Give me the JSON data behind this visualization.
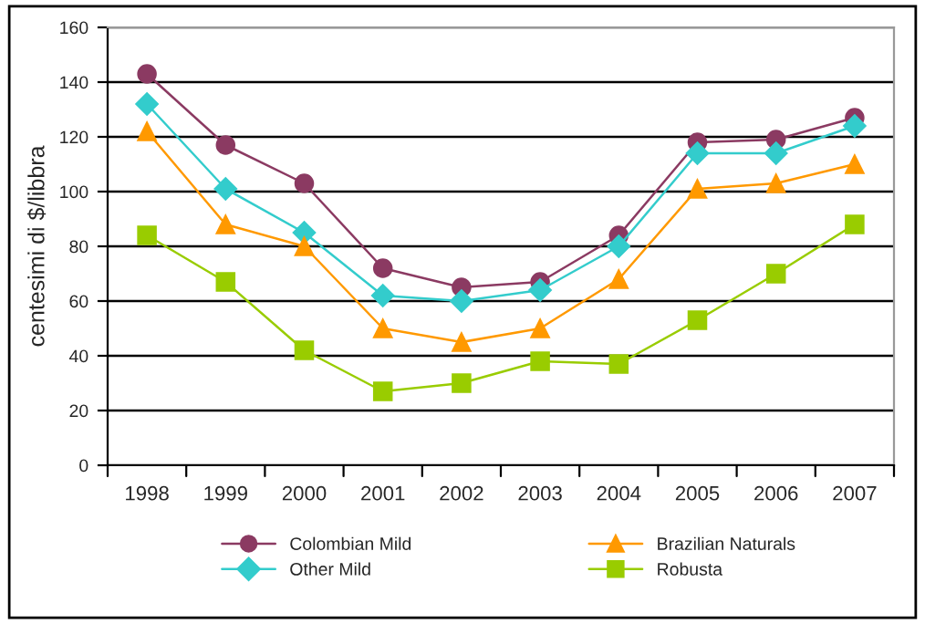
{
  "chart_data": {
    "type": "line",
    "ylabel": "centesimi di $/libbra",
    "categories": [
      "1998",
      "1999",
      "2000",
      "2001",
      "2002",
      "2003",
      "2004",
      "2005",
      "2006",
      "2007"
    ],
    "series": [
      {
        "name": "Colombian Mild",
        "color": "#8b3a62",
        "marker": "circle",
        "values": [
          143,
          117,
          103,
          72,
          65,
          67,
          84,
          118,
          119,
          127
        ]
      },
      {
        "name": "Other Mild",
        "color": "#33cccc",
        "marker": "diamond",
        "values": [
          132,
          101,
          85,
          62,
          60,
          64,
          80,
          114,
          114,
          124
        ]
      },
      {
        "name": "Brazilian Naturals",
        "color": "#ff9900",
        "marker": "triangle",
        "values": [
          122,
          88,
          80,
          50,
          45,
          50,
          68,
          101,
          103,
          110
        ]
      },
      {
        "name": "Robusta",
        "color": "#99cc00",
        "marker": "square",
        "values": [
          84,
          67,
          42,
          27,
          30,
          38,
          37,
          53,
          70,
          88
        ]
      }
    ],
    "ylim": [
      0,
      160
    ],
    "yticks": [
      0,
      20,
      40,
      60,
      80,
      100,
      120,
      140,
      160
    ],
    "grid": "y",
    "legend": "bottom"
  }
}
